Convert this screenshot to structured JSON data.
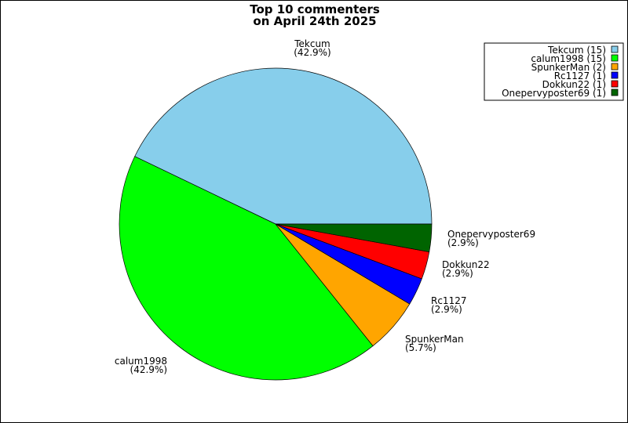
{
  "chart_data": {
    "type": "pie",
    "title": [
      "Top 10 commenters",
      "on April 24th 2025"
    ],
    "slices": [
      {
        "label": "Tekcum",
        "value": 15,
        "percent": "42.9%",
        "legend": "Tekcum (15)",
        "color": "#87ceeb"
      },
      {
        "label": "calum1998",
        "value": 15,
        "percent": "42.9%",
        "legend": "calum1998 (15)",
        "color": "#00ff00"
      },
      {
        "label": "SpunkerMan",
        "value": 2,
        "percent": "5.7%",
        "legend": "SpunkerMan (2)",
        "color": "#ffa500"
      },
      {
        "label": "Rc1127",
        "value": 1,
        "percent": "2.9%",
        "legend": "Rc1127 (1)",
        "color": "#0000ff"
      },
      {
        "label": "Dokkun22",
        "value": 1,
        "percent": "2.9%",
        "legend": "Dokkun22 (1)",
        "color": "#ff0000"
      },
      {
        "label": "Onepervyposter69",
        "value": 1,
        "percent": "2.9%",
        "legend": "Onepervyposter69 (1)",
        "color": "#006400"
      }
    ],
    "start_angle_deg": 0,
    "direction": "counterclockwise",
    "legend_position": "top-right"
  }
}
